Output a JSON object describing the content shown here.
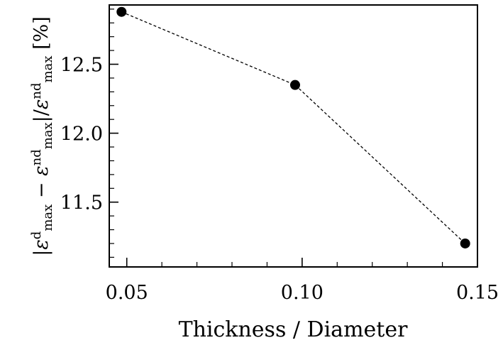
{
  "chart_data": {
    "type": "line",
    "title": "",
    "xlabel": "Thickness / Diameter",
    "ylabel": {
      "symbol": "ε",
      "sup_d": "d",
      "sup_nd": "nd",
      "sub": "max",
      "minus": "−",
      "unit": "[%]"
    },
    "xlim": [
      0.045,
      0.15
    ],
    "ylim": [
      11.03,
      12.93
    ],
    "xticks": [
      0.05,
      0.1,
      0.15
    ],
    "xtick_labels": [
      "0.05",
      "0.10",
      "0.15"
    ],
    "yticks": [
      11.5,
      12.0,
      12.5
    ],
    "ytick_labels": [
      "11.5",
      "12.0",
      "12.5"
    ],
    "grid": false,
    "series": [
      {
        "x": [
          0.0485,
          0.098,
          0.1465
        ],
        "y": [
          12.88,
          12.35,
          11.2
        ],
        "marker": "circle",
        "line_style": "dashed",
        "color": "#000000"
      }
    ]
  }
}
